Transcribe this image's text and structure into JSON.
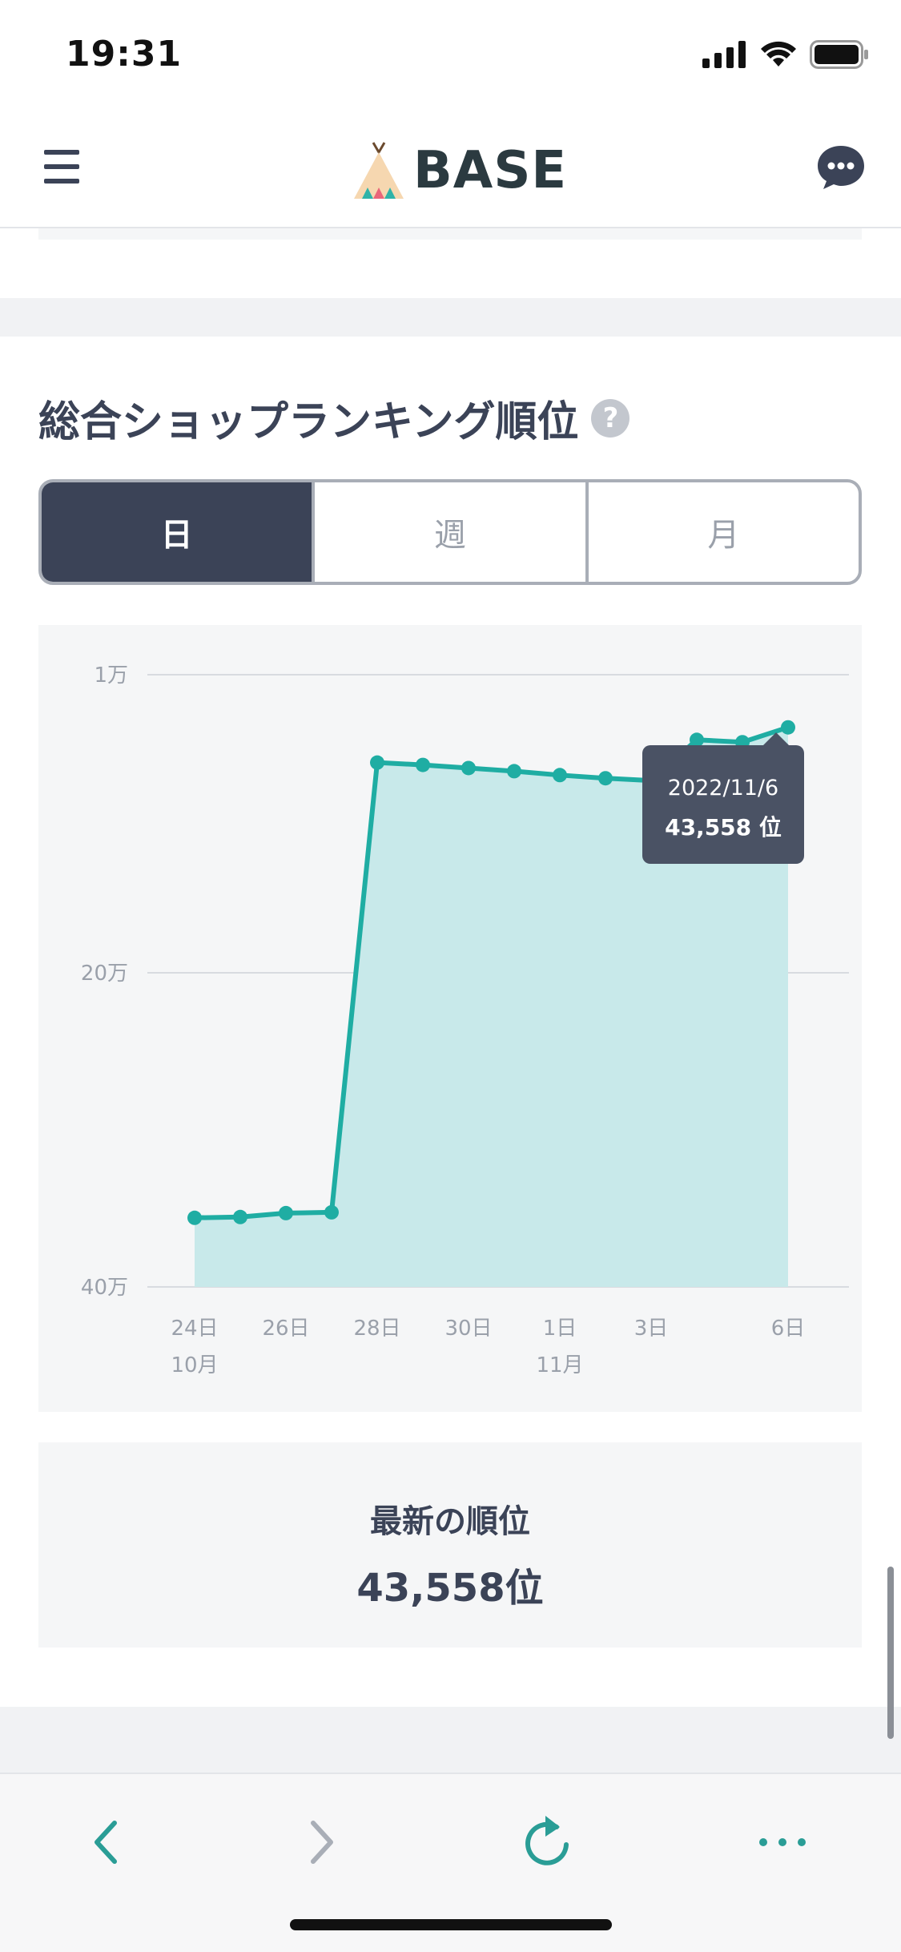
{
  "status_bar": {
    "time": "19:31"
  },
  "header": {
    "logo_text": "BASE"
  },
  "ranking": {
    "title": "総合ショップランキング順位",
    "help_symbol": "?",
    "tabs": [
      {
        "label": "日",
        "active": true
      },
      {
        "label": "週",
        "active": false
      },
      {
        "label": "月",
        "active": false
      }
    ],
    "tooltip": {
      "date": "2022/11/6",
      "value": "43,558 位"
    },
    "latest_label": "最新の順位",
    "latest_value": "43,558位"
  },
  "chart_data": {
    "type": "area",
    "y_axis": {
      "ticks": [
        "1万",
        "20万",
        "40万"
      ],
      "inverted": true,
      "grid": true
    },
    "x_tick_labels": [
      {
        "label": "24日",
        "sub": "10月"
      },
      {
        "label": "26日",
        "sub": ""
      },
      {
        "label": "28日",
        "sub": ""
      },
      {
        "label": "30日",
        "sub": ""
      },
      {
        "label": "1日",
        "sub": "11月"
      },
      {
        "label": "3日",
        "sub": ""
      },
      {
        "label": "6日",
        "sub": ""
      }
    ],
    "series": [
      {
        "points": [
          {
            "date": "2022-10-24",
            "rank": 356000
          },
          {
            "date": "2022-10-25",
            "rank": 355500
          },
          {
            "date": "2022-10-26",
            "rank": 353000
          },
          {
            "date": "2022-10-27",
            "rank": 352500
          },
          {
            "date": "2022-10-28",
            "rank": 66000
          },
          {
            "date": "2022-10-29",
            "rank": 67500
          },
          {
            "date": "2022-10-30",
            "rank": 69500
          },
          {
            "date": "2022-10-31",
            "rank": 71500
          },
          {
            "date": "2022-11-01",
            "rank": 74000
          },
          {
            "date": "2022-11-02",
            "rank": 76000
          },
          {
            "date": "2022-11-03",
            "rank": 77500
          },
          {
            "date": "2022-11-04",
            "rank": 51500
          },
          {
            "date": "2022-11-05",
            "rank": 53000
          },
          {
            "date": "2022-11-06",
            "rank": 43558
          }
        ]
      }
    ],
    "colors": {
      "line": "#1fada3",
      "area": "#c8e9ea",
      "grid": "#d8dbe0"
    }
  }
}
